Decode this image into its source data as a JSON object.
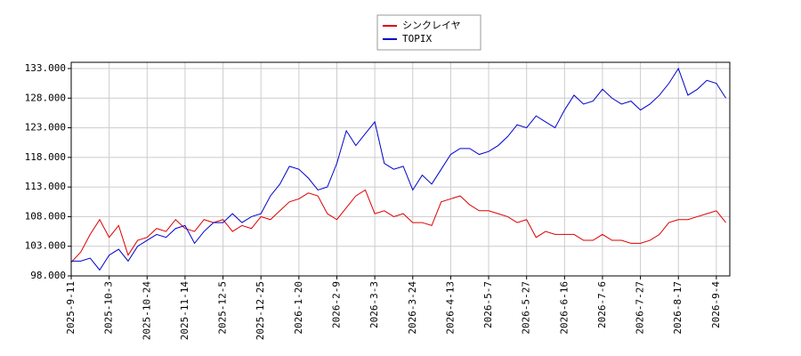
{
  "chart_data": {
    "type": "line",
    "categories": [
      "2025-9-11",
      null,
      null,
      null,
      "2025-10-3",
      null,
      null,
      null,
      "2025-10-24",
      null,
      null,
      null,
      "2025-11-14",
      null,
      null,
      null,
      "2025-12-5",
      null,
      null,
      null,
      "2025-12-25",
      null,
      null,
      null,
      "2026-1-20",
      null,
      null,
      null,
      "2026-2-9",
      null,
      null,
      null,
      "2026-3-3",
      null,
      null,
      null,
      "2026-3-24",
      null,
      null,
      null,
      "2026-4-13",
      null,
      null,
      null,
      "2026-5-7",
      null,
      null,
      null,
      "2026-5-27",
      null,
      null,
      null,
      "2026-6-16",
      null,
      null,
      null,
      "2026-7-6",
      null,
      null,
      null,
      "2026-7-27",
      null,
      null,
      null,
      "2026-8-17",
      null,
      null,
      null,
      "2026-9-4",
      null
    ],
    "series": [
      {
        "name": "シンクレイヤ",
        "color": "#dd0000",
        "values": [
          100.3,
          102,
          105,
          107.5,
          104.5,
          106.5,
          101.5,
          104,
          104.5,
          106,
          105.5,
          107.5,
          106,
          105.5,
          107.5,
          107,
          107.5,
          105.5,
          106.5,
          106,
          108,
          107.5,
          109,
          110.5,
          111,
          112,
          111.5,
          108.5,
          107.5,
          109.5,
          111.5,
          112.5,
          108.5,
          109,
          108,
          108.5,
          107,
          107,
          106.5,
          110.5,
          111,
          111.5,
          110,
          109,
          109,
          108.5,
          108,
          107,
          107.5,
          104.5,
          105.5,
          105,
          105,
          105,
          104,
          104,
          105,
          104,
          104,
          103.5,
          103.5,
          104,
          105,
          107,
          107.5,
          107.5,
          108,
          108.5,
          109,
          107
        ]
      },
      {
        "name": "TOPIX",
        "color": "#0000cc",
        "values": [
          100.5,
          100.5,
          101,
          99,
          101.5,
          102.5,
          100.5,
          103,
          104,
          105,
          104.5,
          106,
          106.5,
          103.5,
          105.5,
          107,
          107,
          108.5,
          107,
          108,
          108.5,
          111.5,
          113.5,
          116.5,
          116,
          114.5,
          112.5,
          113,
          117,
          122.5,
          120,
          122,
          124,
          117,
          116,
          116.5,
          112.5,
          115,
          113.5,
          116,
          118.5,
          119.5,
          119.5,
          118.5,
          119,
          120,
          121.5,
          123.5,
          123,
          125,
          124,
          123,
          126,
          128.5,
          127,
          127.5,
          129.5,
          128,
          127,
          127.5,
          126,
          127,
          128.5,
          130.5,
          133,
          128.5,
          129.5,
          131,
          130.5,
          128
        ]
      }
    ],
    "ylim": [
      98,
      134.05
    ],
    "yticks": [
      {
        "value": 98,
        "label": "98.000"
      },
      {
        "value": 103,
        "label": "103.000"
      },
      {
        "value": 108,
        "label": "108.000"
      },
      {
        "value": 113,
        "label": "113.000"
      },
      {
        "value": 118,
        "label": "118.000"
      },
      {
        "value": 123,
        "label": "123.000"
      },
      {
        "value": 128,
        "label": "128.000"
      },
      {
        "value": 133,
        "label": "133.000"
      }
    ],
    "grid": true
  }
}
